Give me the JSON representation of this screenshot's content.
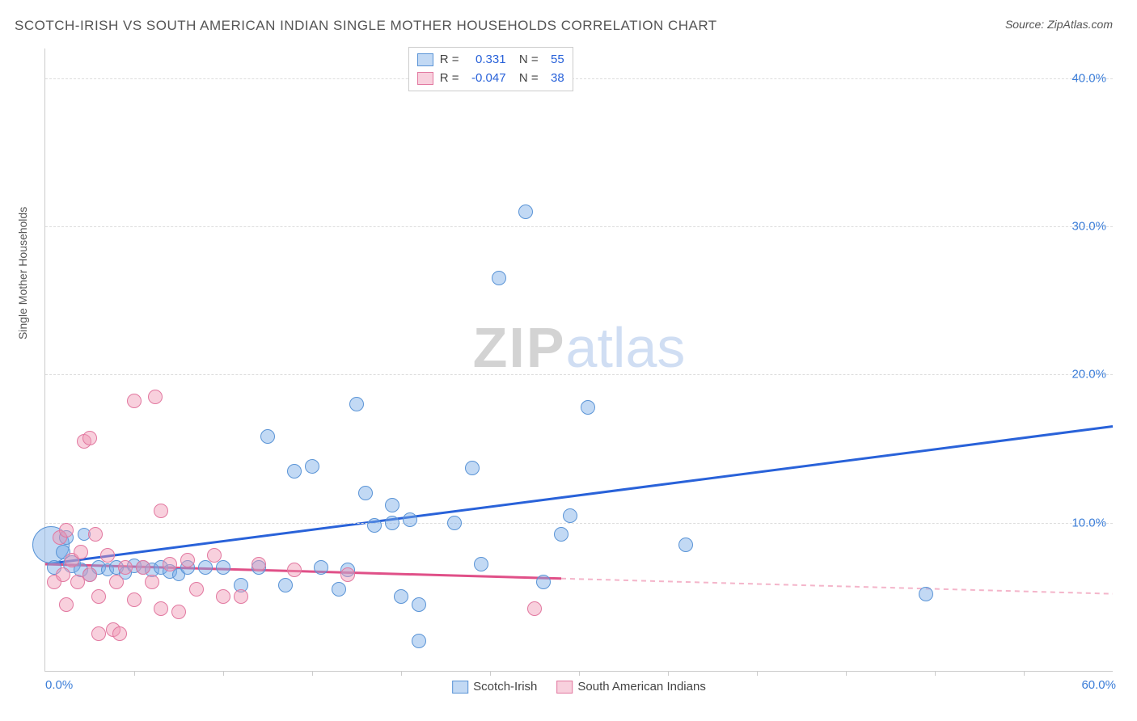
{
  "title": "SCOTCH-IRISH VS SOUTH AMERICAN INDIAN SINGLE MOTHER HOUSEHOLDS CORRELATION CHART",
  "source_label": "Source: ",
  "source_name": "ZipAtlas.com",
  "y_axis_label": "Single Mother Households",
  "watermark_a": "ZIP",
  "watermark_b": "atlas",
  "chart": {
    "type": "scatter",
    "xlim": [
      0,
      60
    ],
    "ylim": [
      0,
      42
    ],
    "x_min_label": "0.0%",
    "x_max_label": "60.0%",
    "y_ticks": [
      {
        "v": 10,
        "label": "10.0%"
      },
      {
        "v": 20,
        "label": "20.0%"
      },
      {
        "v": 30,
        "label": "30.0%"
      },
      {
        "v": 40,
        "label": "40.0%"
      }
    ],
    "x_tick_step": 5,
    "grid_color": "#dddddd",
    "axis_color": "#cccccc",
    "background_color": "#ffffff",
    "series": [
      {
        "name": "Scotch-Irish",
        "label": "Scotch-Irish",
        "fill": "rgba(120,170,230,0.45)",
        "stroke": "#5a94d6",
        "line_color": "#2962d9",
        "r_value": "0.331",
        "n_value": "55",
        "trend": {
          "x1": 0,
          "y1": 7.2,
          "x2": 60,
          "y2": 16.5,
          "solid_until": 60
        },
        "points": [
          {
            "x": 0.3,
            "y": 8.5,
            "r": 22
          },
          {
            "x": 0.5,
            "y": 7.0,
            "r": 8
          },
          {
            "x": 1.0,
            "y": 8.0,
            "r": 8
          },
          {
            "x": 1.2,
            "y": 9.0,
            "r": 8
          },
          {
            "x": 1.5,
            "y": 7.2,
            "r": 10
          },
          {
            "x": 2.0,
            "y": 6.8,
            "r": 8
          },
          {
            "x": 2.2,
            "y": 9.2,
            "r": 7
          },
          {
            "x": 2.5,
            "y": 6.5,
            "r": 8
          },
          {
            "x": 3.0,
            "y": 7.0,
            "r": 8
          },
          {
            "x": 3.5,
            "y": 6.8,
            "r": 7
          },
          {
            "x": 4.0,
            "y": 7.0,
            "r": 8
          },
          {
            "x": 4.5,
            "y": 6.6,
            "r": 7
          },
          {
            "x": 5.0,
            "y": 7.1,
            "r": 8
          },
          {
            "x": 5.5,
            "y": 7.0,
            "r": 8
          },
          {
            "x": 6.0,
            "y": 6.8,
            "r": 8
          },
          {
            "x": 6.5,
            "y": 7.0,
            "r": 8
          },
          {
            "x": 7.0,
            "y": 6.7,
            "r": 8
          },
          {
            "x": 7.5,
            "y": 6.5,
            "r": 7
          },
          {
            "x": 8.0,
            "y": 7.0,
            "r": 8
          },
          {
            "x": 9.0,
            "y": 7.0,
            "r": 8
          },
          {
            "x": 10.0,
            "y": 7.0,
            "r": 8
          },
          {
            "x": 11.0,
            "y": 5.8,
            "r": 8
          },
          {
            "x": 12.0,
            "y": 7.0,
            "r": 8
          },
          {
            "x": 12.5,
            "y": 15.8,
            "r": 8
          },
          {
            "x": 13.5,
            "y": 5.8,
            "r": 8
          },
          {
            "x": 14.0,
            "y": 13.5,
            "r": 8
          },
          {
            "x": 15.0,
            "y": 13.8,
            "r": 8
          },
          {
            "x": 15.5,
            "y": 7.0,
            "r": 8
          },
          {
            "x": 16.5,
            "y": 5.5,
            "r": 8
          },
          {
            "x": 17.0,
            "y": 6.8,
            "r": 8
          },
          {
            "x": 17.5,
            "y": 18.0,
            "r": 8
          },
          {
            "x": 18.0,
            "y": 12.0,
            "r": 8
          },
          {
            "x": 18.5,
            "y": 9.8,
            "r": 8
          },
          {
            "x": 19.5,
            "y": 10.0,
            "r": 8
          },
          {
            "x": 19.5,
            "y": 11.2,
            "r": 8
          },
          {
            "x": 20.0,
            "y": 5.0,
            "r": 8
          },
          {
            "x": 20.5,
            "y": 10.2,
            "r": 8
          },
          {
            "x": 21.0,
            "y": 4.5,
            "r": 8
          },
          {
            "x": 21.0,
            "y": 2.0,
            "r": 8
          },
          {
            "x": 23.0,
            "y": 10.0,
            "r": 8
          },
          {
            "x": 24.0,
            "y": 13.7,
            "r": 8
          },
          {
            "x": 24.5,
            "y": 7.2,
            "r": 8
          },
          {
            "x": 25.5,
            "y": 26.5,
            "r": 8
          },
          {
            "x": 27.0,
            "y": 31.0,
            "r": 8
          },
          {
            "x": 28.0,
            "y": 6.0,
            "r": 8
          },
          {
            "x": 29.0,
            "y": 9.2,
            "r": 8
          },
          {
            "x": 29.5,
            "y": 10.5,
            "r": 8
          },
          {
            "x": 30.5,
            "y": 17.8,
            "r": 8
          },
          {
            "x": 36.0,
            "y": 8.5,
            "r": 8
          },
          {
            "x": 49.5,
            "y": 5.2,
            "r": 8
          }
        ]
      },
      {
        "name": "South American Indians",
        "label": "South American Indians",
        "fill": "rgba(240,150,180,0.45)",
        "stroke": "#e278a0",
        "line_color": "#e05088",
        "r_value": "-0.047",
        "n_value": "38",
        "trend": {
          "x1": 0,
          "y1": 7.2,
          "x2": 60,
          "y2": 5.2,
          "solid_until": 29
        },
        "points": [
          {
            "x": 0.5,
            "y": 6.0,
            "r": 8
          },
          {
            "x": 0.8,
            "y": 9.0,
            "r": 8
          },
          {
            "x": 1.0,
            "y": 6.5,
            "r": 8
          },
          {
            "x": 1.2,
            "y": 9.5,
            "r": 8
          },
          {
            "x": 1.2,
            "y": 4.5,
            "r": 8
          },
          {
            "x": 1.5,
            "y": 7.5,
            "r": 8
          },
          {
            "x": 1.8,
            "y": 6.0,
            "r": 8
          },
          {
            "x": 2.0,
            "y": 8.0,
            "r": 8
          },
          {
            "x": 2.2,
            "y": 15.5,
            "r": 8
          },
          {
            "x": 2.5,
            "y": 15.7,
            "r": 8
          },
          {
            "x": 2.5,
            "y": 6.5,
            "r": 8
          },
          {
            "x": 2.8,
            "y": 9.2,
            "r": 8
          },
          {
            "x": 3.0,
            "y": 5.0,
            "r": 8
          },
          {
            "x": 3.0,
            "y": 2.5,
            "r": 8
          },
          {
            "x": 3.5,
            "y": 7.8,
            "r": 8
          },
          {
            "x": 3.8,
            "y": 2.8,
            "r": 8
          },
          {
            "x": 4.0,
            "y": 6.0,
            "r": 8
          },
          {
            "x": 4.2,
            "y": 2.5,
            "r": 8
          },
          {
            "x": 4.5,
            "y": 7.0,
            "r": 8
          },
          {
            "x": 5.0,
            "y": 18.2,
            "r": 8
          },
          {
            "x": 5.0,
            "y": 4.8,
            "r": 8
          },
          {
            "x": 5.5,
            "y": 7.0,
            "r": 8
          },
          {
            "x": 6.0,
            "y": 6.0,
            "r": 8
          },
          {
            "x": 6.2,
            "y": 18.5,
            "r": 8
          },
          {
            "x": 6.5,
            "y": 4.2,
            "r": 8
          },
          {
            "x": 6.5,
            "y": 10.8,
            "r": 8
          },
          {
            "x": 7.0,
            "y": 7.2,
            "r": 8
          },
          {
            "x": 7.5,
            "y": 4.0,
            "r": 8
          },
          {
            "x": 8.0,
            "y": 7.5,
            "r": 8
          },
          {
            "x": 8.5,
            "y": 5.5,
            "r": 8
          },
          {
            "x": 9.5,
            "y": 7.8,
            "r": 8
          },
          {
            "x": 10.0,
            "y": 5.0,
            "r": 8
          },
          {
            "x": 11.0,
            "y": 5.0,
            "r": 8
          },
          {
            "x": 12.0,
            "y": 7.2,
            "r": 8
          },
          {
            "x": 14.0,
            "y": 6.8,
            "r": 8
          },
          {
            "x": 17.0,
            "y": 6.5,
            "r": 8
          },
          {
            "x": 27.5,
            "y": 4.2,
            "r": 8
          }
        ]
      }
    ],
    "legend_stats_left_pct": 34,
    "legend_r_label": "R =",
    "legend_n_label": "N ="
  }
}
